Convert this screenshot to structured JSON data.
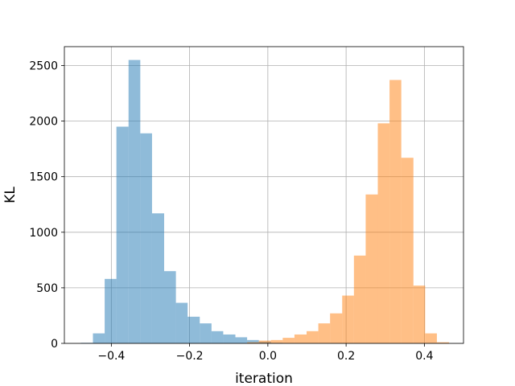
{
  "chart_data": {
    "type": "bar",
    "title": "",
    "xlabel": "iteration",
    "ylabel": "KL",
    "xlim": [
      -0.52,
      0.5
    ],
    "ylim": [
      0,
      2670
    ],
    "grid": true,
    "legend": "none",
    "x_ticks": [
      -0.4,
      -0.2,
      0.0,
      0.2,
      0.4
    ],
    "x_tick_labels": [
      "−0.4",
      "−0.2",
      "0.0",
      "0.2",
      "0.4"
    ],
    "y_ticks": [
      0,
      500,
      1000,
      1500,
      2000,
      2500
    ],
    "y_tick_labels": [
      "0",
      "500",
      "1000",
      "1500",
      "2000",
      "2500"
    ],
    "series": [
      {
        "color": "#1f77b4",
        "bins": [
          {
            "x0": -0.478,
            "x1": -0.447,
            "count": 5
          },
          {
            "x0": -0.447,
            "x1": -0.417,
            "count": 90
          },
          {
            "x0": -0.417,
            "x1": -0.387,
            "count": 580
          },
          {
            "x0": -0.387,
            "x1": -0.356,
            "count": 1950
          },
          {
            "x0": -0.356,
            "x1": -0.326,
            "count": 2550
          },
          {
            "x0": -0.326,
            "x1": -0.296,
            "count": 1890
          },
          {
            "x0": -0.296,
            "x1": -0.265,
            "count": 1170
          },
          {
            "x0": -0.265,
            "x1": -0.235,
            "count": 650
          },
          {
            "x0": -0.235,
            "x1": -0.205,
            "count": 365
          },
          {
            "x0": -0.205,
            "x1": -0.174,
            "count": 240
          },
          {
            "x0": -0.174,
            "x1": -0.144,
            "count": 180
          },
          {
            "x0": -0.144,
            "x1": -0.114,
            "count": 110
          },
          {
            "x0": -0.114,
            "x1": -0.083,
            "count": 80
          },
          {
            "x0": -0.083,
            "x1": -0.053,
            "count": 55
          },
          {
            "x0": -0.053,
            "x1": -0.023,
            "count": 30
          },
          {
            "x0": -0.023,
            "x1": 0.008,
            "count": 15
          },
          {
            "x0": 0.008,
            "x1": 0.038,
            "count": 5
          }
        ]
      },
      {
        "color": "#ff7f0e",
        "bins": [
          {
            "x0": -0.053,
            "x1": -0.023,
            "count": 10
          },
          {
            "x0": -0.023,
            "x1": 0.008,
            "count": 25
          },
          {
            "x0": 0.008,
            "x1": 0.038,
            "count": 30
          },
          {
            "x0": 0.038,
            "x1": 0.068,
            "count": 50
          },
          {
            "x0": 0.068,
            "x1": 0.099,
            "count": 80
          },
          {
            "x0": 0.099,
            "x1": 0.129,
            "count": 110
          },
          {
            "x0": 0.129,
            "x1": 0.159,
            "count": 180
          },
          {
            "x0": 0.159,
            "x1": 0.19,
            "count": 270
          },
          {
            "x0": 0.19,
            "x1": 0.22,
            "count": 430
          },
          {
            "x0": 0.22,
            "x1": 0.25,
            "count": 790
          },
          {
            "x0": 0.25,
            "x1": 0.281,
            "count": 1340
          },
          {
            "x0": 0.281,
            "x1": 0.311,
            "count": 1980
          },
          {
            "x0": 0.311,
            "x1": 0.341,
            "count": 2370
          },
          {
            "x0": 0.341,
            "x1": 0.372,
            "count": 1670
          },
          {
            "x0": 0.372,
            "x1": 0.402,
            "count": 520
          },
          {
            "x0": 0.402,
            "x1": 0.432,
            "count": 90
          },
          {
            "x0": 0.432,
            "x1": 0.463,
            "count": 10
          }
        ]
      }
    ]
  }
}
